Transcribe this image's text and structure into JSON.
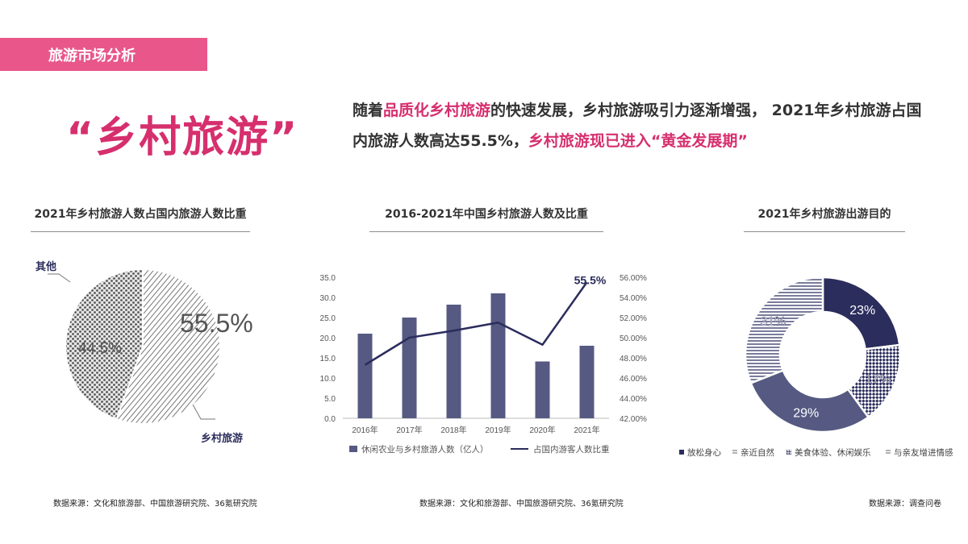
{
  "header": {
    "section": "旅游市场分析"
  },
  "headline": "“乡村旅游”",
  "intro": {
    "p1": "随着",
    "h1": "品质化乡村旅游",
    "p2": "的快速发展，乡村旅游吸引力逐渐增强， 2021年乡村旅游占国内旅游人数高达55.5%，",
    "h2": "乡村旅游现已进入“黄金发展期”"
  },
  "colors": {
    "accent": "#d62f6e",
    "tag_bg": "#e8568a",
    "navy": "#2b2d5c",
    "bar": "#565a82",
    "gray": "#8c8c8c"
  },
  "pie_chart": {
    "title": "2021年乡村旅游人数占国内旅游人数比重",
    "source": "数据来源：文化和旅游部、中国旅游研究院、36氪研究院",
    "chart_data": {
      "type": "pie",
      "slices": [
        {
          "label": "乡村旅游",
          "value": 55.5,
          "value_label": "55.5%"
        },
        {
          "label": "其他",
          "value": 44.5,
          "value_label": "44.5%"
        }
      ]
    }
  },
  "combo_chart": {
    "title": "2016-2021年中国乡村旅游人数及比重",
    "source": "数据来源：文化和旅游部、中国旅游研究院、36氪研究院",
    "chart_data": {
      "type": "bar",
      "categories": [
        "2016年",
        "2017年",
        "2018年",
        "2019年",
        "2020年",
        "2021年"
      ],
      "series": [
        {
          "name": "休闲农业与乡村旅游人数（亿人）",
          "type": "bar",
          "axis": "left",
          "values": [
            21,
            25,
            28.2,
            31,
            14.1,
            18
          ]
        },
        {
          "name": "占国内游客人数比重",
          "type": "line",
          "axis": "right",
          "values": [
            47.3,
            50.0,
            50.7,
            51.5,
            49.3,
            55.5
          ]
        }
      ],
      "y_left": {
        "min": 0,
        "max": 35,
        "step": 5,
        "ticks": [
          "0.0",
          "5.0",
          "10.0",
          "15.0",
          "20.0",
          "25.0",
          "30.0",
          "35.0"
        ]
      },
      "y_right": {
        "min": 42,
        "max": 56,
        "step": 2,
        "ticks": [
          "42.00%",
          "44.00%",
          "46.00%",
          "48.00%",
          "50.00%",
          "52.00%",
          "54.00%",
          "56.00%"
        ]
      },
      "annotation": "55.5%",
      "legend_position": "bottom"
    }
  },
  "donut_chart": {
    "title": "2021年乡村旅游出游目的",
    "source": "数据来源：调查问卷",
    "chart_data": {
      "type": "pie",
      "slices": [
        {
          "label": "放松身心",
          "value": 23,
          "value_label": "23%"
        },
        {
          "label": "亲近自然",
          "value": 17,
          "value_label": "17%"
        },
        {
          "label": "美食体验、休闲娱乐",
          "value": 29,
          "value_label": "29%"
        },
        {
          "label": "与亲友增进情感",
          "value": 31,
          "value_label": "31%"
        }
      ],
      "legend_position": "bottom"
    }
  }
}
